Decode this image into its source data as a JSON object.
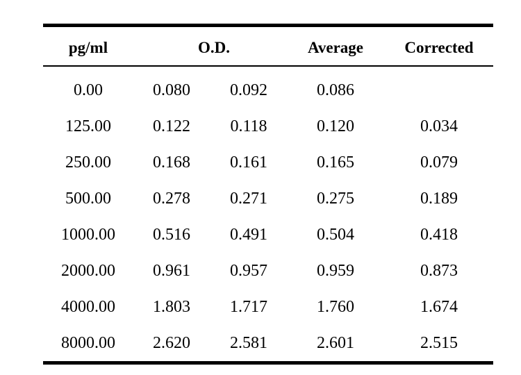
{
  "table": {
    "headers": {
      "conc": "pg/ml",
      "od": "O.D.",
      "average": "Average",
      "corrected": "Corrected"
    },
    "rows": [
      {
        "conc": "0.00",
        "od1": "0.080",
        "od2": "0.092",
        "average": "0.086",
        "corrected": ""
      },
      {
        "conc": "125.00",
        "od1": "0.122",
        "od2": "0.118",
        "average": "0.120",
        "corrected": "0.034"
      },
      {
        "conc": "250.00",
        "od1": "0.168",
        "od2": "0.161",
        "average": "0.165",
        "corrected": "0.079"
      },
      {
        "conc": "500.00",
        "od1": "0.278",
        "od2": "0.271",
        "average": "0.275",
        "corrected": "0.189"
      },
      {
        "conc": "1000.00",
        "od1": "0.516",
        "od2": "0.491",
        "average": "0.504",
        "corrected": "0.418"
      },
      {
        "conc": "2000.00",
        "od1": "0.961",
        "od2": "0.957",
        "average": "0.959",
        "corrected": "0.873"
      },
      {
        "conc": "4000.00",
        "od1": "1.803",
        "od2": "1.717",
        "average": "1.760",
        "corrected": "1.674"
      },
      {
        "conc": "8000.00",
        "od1": "2.620",
        "od2": "2.581",
        "average": "2.601",
        "corrected": "2.515"
      }
    ]
  }
}
